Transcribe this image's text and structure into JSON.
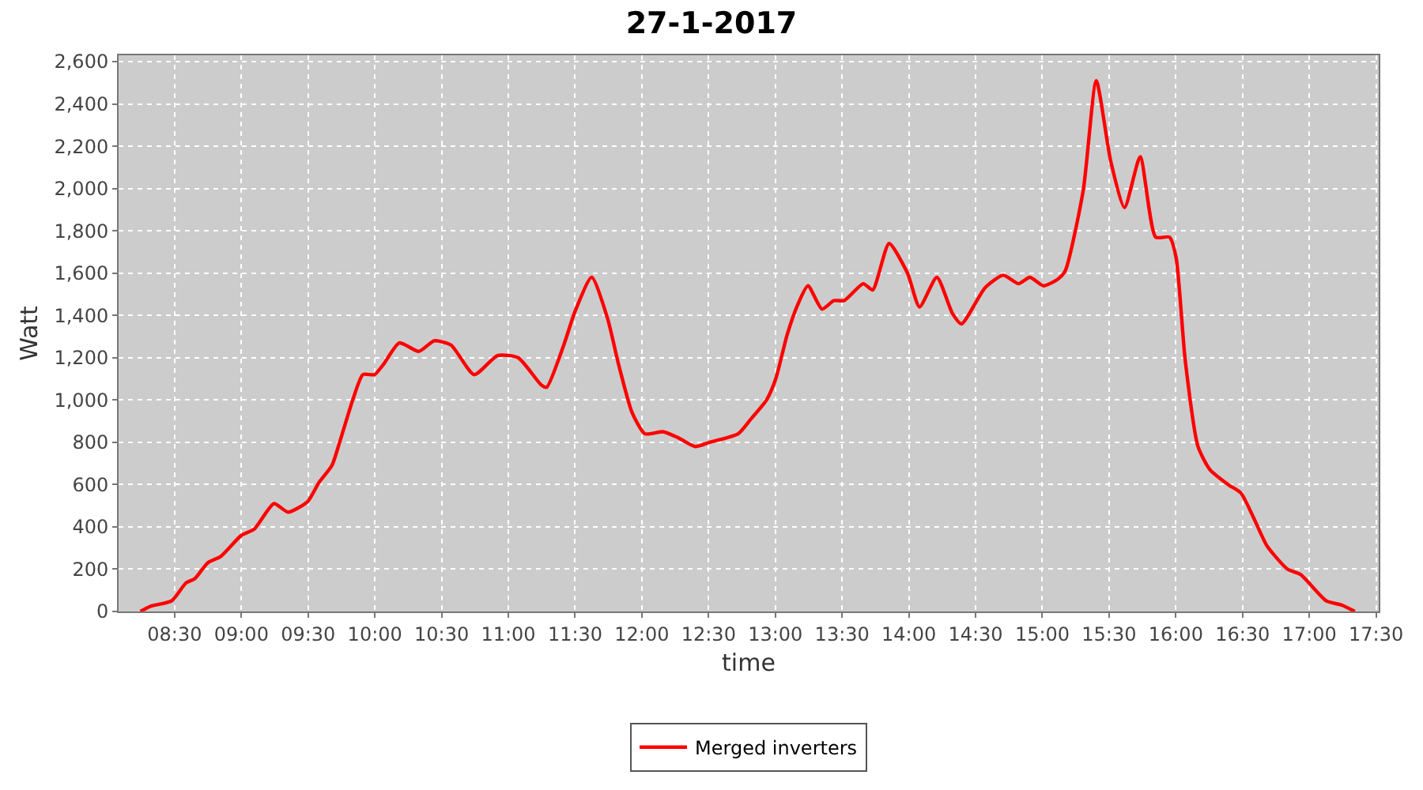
{
  "chart_data": {
    "type": "line",
    "title": "27-1-2017",
    "xlabel": "time",
    "ylabel": "Watt",
    "xlim": [
      8.08,
      17.52
    ],
    "xticks": [
      {
        "value": 8.5,
        "label": "08:30"
      },
      {
        "value": 9,
        "label": "09:00"
      },
      {
        "value": 9.5,
        "label": "09:30"
      },
      {
        "value": 10,
        "label": "10:00"
      },
      {
        "value": 10.5,
        "label": "10:30"
      },
      {
        "value": 11,
        "label": "11:00"
      },
      {
        "value": 11.5,
        "label": "11:30"
      },
      {
        "value": 12,
        "label": "12:00"
      },
      {
        "value": 12.5,
        "label": "12:30"
      },
      {
        "value": 13,
        "label": "13:00"
      },
      {
        "value": 13.5,
        "label": "13:30"
      },
      {
        "value": 14,
        "label": "14:00"
      },
      {
        "value": 14.5,
        "label": "14:30"
      },
      {
        "value": 15,
        "label": "15:00"
      },
      {
        "value": 15.5,
        "label": "15:30"
      },
      {
        "value": 16,
        "label": "16:00"
      },
      {
        "value": 16.5,
        "label": "16:30"
      },
      {
        "value": 17,
        "label": "17:00"
      },
      {
        "value": 17.5,
        "label": "17:30"
      }
    ],
    "ylim": [
      0,
      2630
    ],
    "yticks": [
      0,
      200,
      400,
      600,
      800,
      {
        "value": 1000,
        "label": "1,000"
      },
      {
        "value": 1200,
        "label": "1,200"
      },
      {
        "value": 1400,
        "label": "1,400"
      },
      {
        "value": 1600,
        "label": "1,600"
      },
      {
        "value": 1800,
        "label": "1,800"
      },
      {
        "value": 2000,
        "label": "2,000"
      },
      {
        "value": 2200,
        "label": "2,200"
      },
      {
        "value": 2400,
        "label": "2,400"
      },
      {
        "value": 2600,
        "label": "2,600"
      }
    ],
    "grid": true,
    "legend": "bottom",
    "marker": "none",
    "line_style": "solid",
    "x": [
      8.244,
      8.322,
      8.477,
      8.585,
      8.651,
      8.748,
      8.845,
      9.0,
      9.097,
      9.244,
      9.349,
      9.497,
      9.581,
      9.678,
      9.736,
      9.834,
      9.91,
      9.997,
      10.066,
      10.183,
      10.329,
      10.445,
      10.57,
      10.744,
      10.919,
      11.073,
      11.248,
      11.287,
      11.415,
      11.5,
      11.624,
      11.741,
      11.829,
      11.927,
      12.023,
      12.159,
      12.276,
      12.399,
      12.508,
      12.721,
      12.817,
      12.934,
      13.003,
      13.089,
      13.167,
      13.244,
      13.349,
      13.438,
      13.515,
      13.659,
      13.729,
      13.852,
      13.99,
      14.08,
      14.21,
      14.326,
      14.395,
      14.57,
      14.706,
      14.822,
      14.907,
      15.008,
      15.113,
      15.171,
      15.306,
      15.404,
      15.512,
      15.616,
      15.733,
      15.849,
      15.953,
      16.003,
      16.07,
      16.166,
      16.256,
      16.392,
      16.488,
      16.585,
      16.683,
      16.837,
      16.934,
      17.128,
      17.244,
      17.341
    ],
    "series": [
      {
        "name": "Merged inverters",
        "color": "#ff0000",
        "values": [
          0,
          25,
          50,
          135,
          155,
          230,
          260,
          360,
          390,
          510,
          470,
          520,
          610,
          690,
          800,
          1000,
          1120,
          1120,
          1170,
          1270,
          1230,
          1280,
          1260,
          1120,
          1210,
          1200,
          1070,
          1060,
          1260,
          1420,
          1580,
          1390,
          1160,
          940,
          840,
          850,
          820,
          780,
          800,
          840,
          910,
          1000,
          1100,
          1310,
          1450,
          1540,
          1430,
          1470,
          1470,
          1550,
          1520,
          1740,
          1600,
          1440,
          1580,
          1410,
          1360,
          1530,
          1590,
          1550,
          1580,
          1540,
          1570,
          1610,
          1990,
          2510,
          2130,
          1910,
          2150,
          1770,
          1770,
          1670,
          1190,
          780,
          670,
          600,
          560,
          440,
          310,
          200,
          175,
          50,
          30,
          0
        ]
      }
    ]
  }
}
